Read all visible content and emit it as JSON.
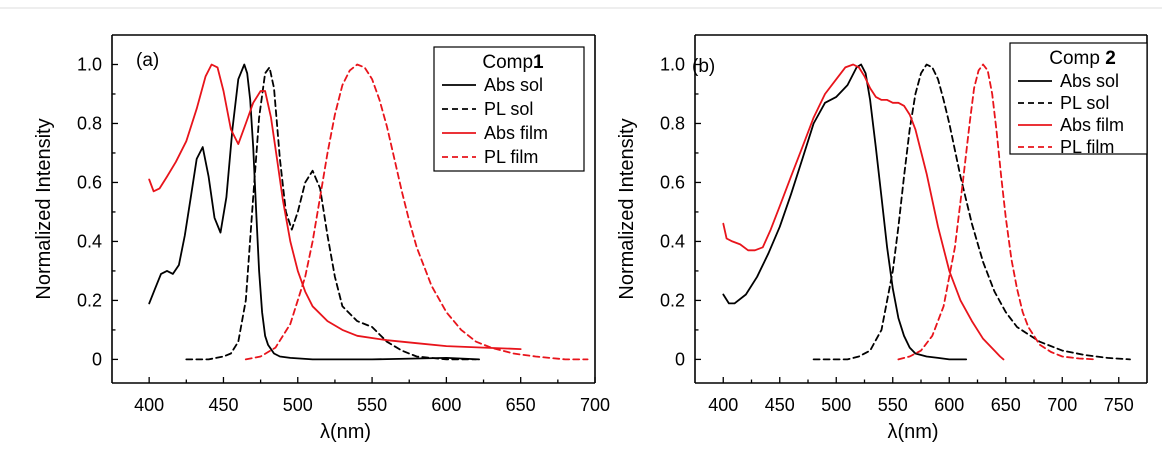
{
  "chart_data": [
    {
      "type": "line",
      "panel_label": "(a)",
      "legend_title": "Comp",
      "legend_title_bold": "1",
      "xlabel": "λ(nm)",
      "ylabel": "Normalized Intensity",
      "xlim": [
        375,
        700
      ],
      "ylim": [
        -0.08,
        1.1
      ],
      "xticks": [
        400,
        450,
        500,
        550,
        600,
        650,
        700
      ],
      "yticks": [
        0,
        0.2,
        0.4,
        0.6,
        0.8,
        1.0
      ],
      "ytick_labels": [
        "0",
        "0.2",
        "0.4",
        "0.6",
        "0.8",
        "1.0"
      ],
      "legend_position": "top-right",
      "series": [
        {
          "name": "Abs sol",
          "color": "#000000",
          "dash": "solid",
          "x": [
            400,
            404,
            408,
            412,
            416,
            420,
            424,
            428,
            432,
            436,
            440,
            444,
            448,
            452,
            456,
            460,
            464,
            466,
            468,
            470,
            472,
            474,
            476,
            478,
            480,
            484,
            488,
            495,
            510,
            550,
            600,
            622
          ],
          "y": [
            0.19,
            0.24,
            0.29,
            0.3,
            0.29,
            0.32,
            0.42,
            0.55,
            0.68,
            0.72,
            0.62,
            0.48,
            0.43,
            0.55,
            0.78,
            0.95,
            1.0,
            0.97,
            0.88,
            0.72,
            0.5,
            0.3,
            0.16,
            0.08,
            0.05,
            0.02,
            0.01,
            0.005,
            0.0,
            0.0,
            0.005,
            0.0
          ]
        },
        {
          "name": "PL sol",
          "color": "#000000",
          "dash": "dashed",
          "x": [
            425,
            440,
            450,
            455,
            460,
            465,
            470,
            474,
            478,
            481,
            484,
            488,
            492,
            496,
            500,
            505,
            510,
            515,
            520,
            525,
            530,
            540,
            550,
            560,
            570,
            580,
            600,
            620
          ],
          "y": [
            0.0,
            0.0,
            0.01,
            0.02,
            0.06,
            0.2,
            0.55,
            0.82,
            0.97,
            0.99,
            0.92,
            0.68,
            0.5,
            0.44,
            0.5,
            0.6,
            0.64,
            0.58,
            0.42,
            0.28,
            0.18,
            0.13,
            0.11,
            0.06,
            0.03,
            0.01,
            0.0,
            0.0
          ]
        },
        {
          "name": "Abs film",
          "color": "#e8141b",
          "dash": "solid",
          "x": [
            400,
            403,
            407,
            412,
            418,
            425,
            432,
            438,
            442,
            446,
            450,
            455,
            460,
            465,
            470,
            475,
            478,
            482,
            486,
            490,
            495,
            500,
            505,
            510,
            520,
            530,
            540,
            560,
            580,
            600,
            625,
            650
          ],
          "y": [
            0.61,
            0.57,
            0.58,
            0.62,
            0.67,
            0.74,
            0.85,
            0.96,
            1.0,
            0.99,
            0.91,
            0.78,
            0.73,
            0.8,
            0.87,
            0.91,
            0.91,
            0.82,
            0.68,
            0.54,
            0.4,
            0.3,
            0.23,
            0.18,
            0.13,
            0.1,
            0.08,
            0.065,
            0.055,
            0.045,
            0.04,
            0.035
          ]
        },
        {
          "name": "PL film",
          "color": "#e8141b",
          "dash": "dashed",
          "x": [
            465,
            475,
            485,
            495,
            505,
            510,
            515,
            520,
            525,
            530,
            535,
            540,
            545,
            550,
            555,
            560,
            565,
            570,
            575,
            580,
            590,
            600,
            610,
            620,
            630,
            645,
            660,
            680,
            695
          ],
          "y": [
            0.0,
            0.01,
            0.04,
            0.12,
            0.28,
            0.4,
            0.55,
            0.7,
            0.83,
            0.93,
            0.98,
            1.0,
            0.99,
            0.95,
            0.88,
            0.79,
            0.68,
            0.57,
            0.47,
            0.38,
            0.25,
            0.16,
            0.1,
            0.06,
            0.04,
            0.02,
            0.01,
            0.0,
            0.0
          ]
        }
      ]
    },
    {
      "type": "line",
      "panel_label": "(b)",
      "legend_title": "Comp ",
      "legend_title_bold": "2",
      "xlabel": "λ(nm)",
      "ylabel": "Normalized Intensity",
      "xlim": [
        375,
        775
      ],
      "ylim": [
        -0.08,
        1.1
      ],
      "xticks": [
        400,
        450,
        500,
        550,
        600,
        650,
        700,
        750
      ],
      "yticks": [
        0,
        0.2,
        0.4,
        0.6,
        0.8,
        1.0
      ],
      "ytick_labels": [
        "0",
        "0.2",
        "0.4",
        "0.6",
        "0.8",
        "1.0"
      ],
      "legend_position": "top-right",
      "series": [
        {
          "name": "Abs sol",
          "color": "#000000",
          "dash": "solid",
          "x": [
            400,
            405,
            410,
            420,
            430,
            440,
            450,
            460,
            470,
            480,
            490,
            500,
            510,
            518,
            522,
            526,
            530,
            535,
            540,
            545,
            550,
            555,
            560,
            565,
            570,
            580,
            590,
            600,
            615
          ],
          "y": [
            0.22,
            0.19,
            0.19,
            0.22,
            0.28,
            0.36,
            0.45,
            0.56,
            0.68,
            0.8,
            0.87,
            0.89,
            0.93,
            0.99,
            1.0,
            0.97,
            0.88,
            0.72,
            0.55,
            0.38,
            0.24,
            0.14,
            0.08,
            0.04,
            0.02,
            0.01,
            0.005,
            0.0,
            0.0
          ]
        },
        {
          "name": "PL sol",
          "color": "#000000",
          "dash": "dashed",
          "x": [
            480,
            500,
            510,
            520,
            530,
            540,
            550,
            555,
            560,
            565,
            570,
            575,
            580,
            585,
            590,
            595,
            600,
            610,
            620,
            630,
            640,
            650,
            660,
            680,
            700,
            720,
            740,
            760
          ],
          "y": [
            0.0,
            0.0,
            0.0,
            0.01,
            0.03,
            0.1,
            0.3,
            0.45,
            0.62,
            0.78,
            0.9,
            0.97,
            1.0,
            0.99,
            0.95,
            0.88,
            0.8,
            0.62,
            0.46,
            0.33,
            0.23,
            0.16,
            0.11,
            0.06,
            0.03,
            0.015,
            0.005,
            0.0
          ]
        },
        {
          "name": "Abs film",
          "color": "#e8141b",
          "dash": "solid",
          "x": [
            400,
            403,
            408,
            415,
            422,
            428,
            435,
            442,
            450,
            460,
            470,
            480,
            490,
            500,
            508,
            515,
            520,
            525,
            530,
            535,
            540,
            545,
            550,
            555,
            560,
            565,
            570,
            580,
            590,
            600,
            610,
            620,
            630,
            640,
            645,
            648
          ],
          "y": [
            0.46,
            0.41,
            0.4,
            0.39,
            0.37,
            0.37,
            0.38,
            0.44,
            0.52,
            0.62,
            0.72,
            0.82,
            0.9,
            0.95,
            0.99,
            1.0,
            0.99,
            0.96,
            0.92,
            0.89,
            0.88,
            0.88,
            0.87,
            0.87,
            0.86,
            0.83,
            0.78,
            0.63,
            0.45,
            0.3,
            0.2,
            0.13,
            0.07,
            0.03,
            0.01,
            0.0
          ]
        },
        {
          "name": "PL film",
          "color": "#e8141b",
          "dash": "dashed",
          "x": [
            555,
            565,
            575,
            585,
            595,
            605,
            612,
            618,
            622,
            626,
            630,
            634,
            638,
            642,
            646,
            650,
            655,
            660,
            665,
            670,
            680,
            690,
            700,
            715,
            730
          ],
          "y": [
            0.0,
            0.01,
            0.03,
            0.08,
            0.18,
            0.38,
            0.6,
            0.8,
            0.92,
            0.98,
            1.0,
            0.98,
            0.9,
            0.77,
            0.62,
            0.48,
            0.34,
            0.24,
            0.16,
            0.11,
            0.05,
            0.025,
            0.01,
            0.003,
            0.0
          ]
        }
      ]
    }
  ]
}
